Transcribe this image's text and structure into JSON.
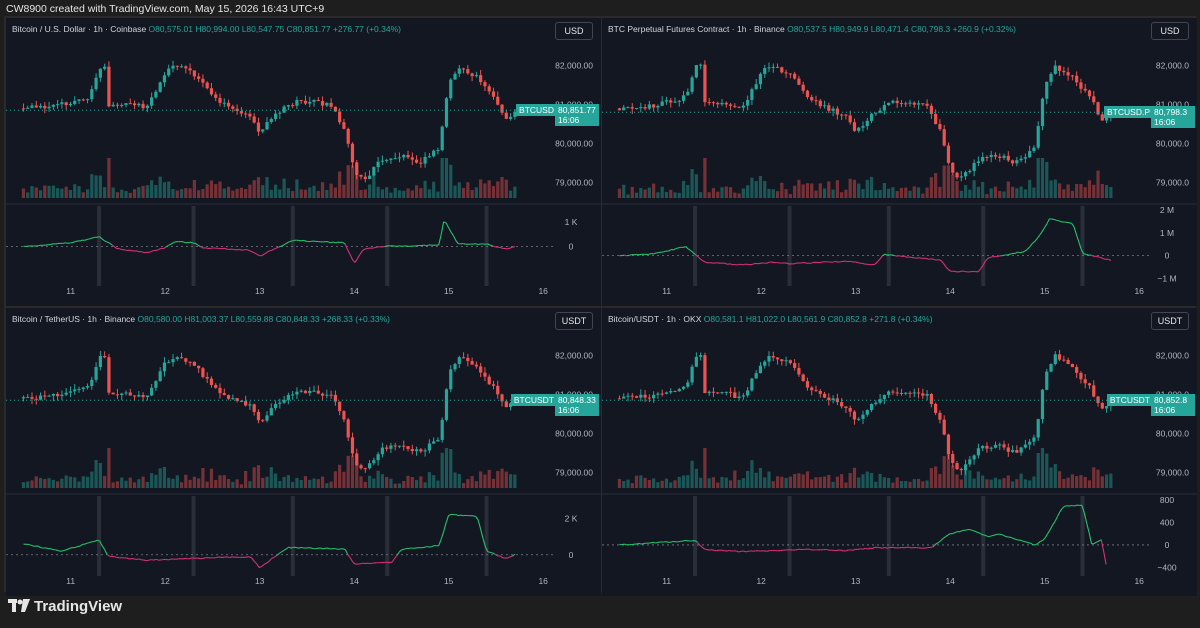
{
  "caption": "CW8900 created with TradingView.com, May 15, 2026 16:43 UTC+9",
  "brand": "TradingView",
  "colors": {
    "up": "#26a69a",
    "down": "#ef5350",
    "cvd_up": "#26c26a",
    "cvd_down": "#d6307a",
    "bg": "#131722",
    "grid": "#1f2430"
  },
  "panels": [
    {
      "name": "Bitcoin / U.S. Dollar · 1h · Coinbase",
      "ohlc": {
        "o": "O80,575.01",
        "h": "H80,994.00",
        "l": "L80,547.75",
        "c": "C80,851.77",
        "chg": "+276.77 (+0.34%)"
      },
      "currency": "USD",
      "ticker": "BTCUSD",
      "last_price": "80,851.77",
      "countdown": "16:06",
      "price_ticks": [
        "82,000.00",
        "81,000.00",
        "80,000.00",
        "79,000.00"
      ],
      "cvd_ticks": [
        "1 K",
        "0"
      ],
      "x_ticks": [
        "11",
        "12",
        "13",
        "14",
        "15",
        "16"
      ]
    },
    {
      "name": "BTC Perpetual Futures Contract · 1h · Binance",
      "ohlc": {
        "o": "O80,537.5",
        "h": "H80,949.9",
        "l": "L80,471.4",
        "c": "C80,798.3",
        "chg": "+260.9 (+0.32%)"
      },
      "currency": "USD",
      "ticker": "BTCUSD.P",
      "last_price": "80,798.3",
      "countdown": "16:06",
      "price_ticks": [
        "82,000.0",
        "81,000.0",
        "80,000.0",
        "79,000.0"
      ],
      "cvd_ticks": [
        "2 M",
        "1 M",
        "0",
        "−1 M"
      ],
      "x_ticks": [
        "11",
        "12",
        "13",
        "14",
        "15",
        "16"
      ]
    },
    {
      "name": "Bitcoin / TetherUS · 1h · Binance",
      "ohlc": {
        "o": "O80,580.00",
        "h": "H81,003.37",
        "l": "L80,559.88",
        "c": "C80,848.33",
        "chg": "+268.33 (+0.33%)"
      },
      "currency": "USDT",
      "ticker": "BTCUSDT",
      "last_price": "80,848.33",
      "countdown": "16:06",
      "price_ticks": [
        "82,000.00",
        "81,000.00",
        "80,000.00",
        "79,000.00"
      ],
      "cvd_ticks": [
        "2 K",
        "0"
      ],
      "x_ticks": [
        "11",
        "12",
        "13",
        "14",
        "15",
        "16"
      ]
    },
    {
      "name": "Bitcoin/USDT · 1h · OKX",
      "ohlc": {
        "o": "O80,581.1",
        "h": "H81,022.0",
        "l": "L80,561.9",
        "c": "C80,852.8",
        "chg": "+271.8 (+0.34%)"
      },
      "currency": "USDT",
      "ticker": "BTCUSDT",
      "last_price": "80,852.8",
      "countdown": "16:06",
      "price_ticks": [
        "82,000.0",
        "81,000.0",
        "80,000.0",
        "79,000.0"
      ],
      "cvd_ticks": [
        "800",
        "400",
        "0",
        "−400"
      ],
      "x_ticks": [
        "11",
        "12",
        "13",
        "14",
        "15",
        "16"
      ]
    }
  ],
  "chart_data": [
    {
      "type": "candlestick",
      "title": "Bitcoin / U.S. Dollar · 1h · Coinbase",
      "ylim": [
        78600,
        82500
      ],
      "cvd_ylim": [
        -1500,
        1500
      ],
      "x": [
        "11",
        "12",
        "13",
        "14",
        "15",
        "16"
      ],
      "close_path": [
        [
          10.5,
          80900
        ],
        [
          10.8,
          80950
        ],
        [
          11.0,
          81050
        ],
        [
          11.2,
          81200
        ],
        [
          11.35,
          82200
        ],
        [
          11.4,
          81000
        ],
        [
          11.6,
          81050
        ],
        [
          11.8,
          80900
        ],
        [
          12.0,
          81800
        ],
        [
          12.1,
          82000
        ],
        [
          12.3,
          81800
        ],
        [
          12.5,
          81200
        ],
        [
          12.7,
          80900
        ],
        [
          12.9,
          80700
        ],
        [
          13.0,
          80300
        ],
        [
          13.2,
          80800
        ],
        [
          13.4,
          81100
        ],
        [
          13.6,
          81050
        ],
        [
          13.75,
          81000
        ],
        [
          13.9,
          80300
        ],
        [
          14.0,
          79300
        ],
        [
          14.1,
          79050
        ],
        [
          14.3,
          79600
        ],
        [
          14.5,
          79700
        ],
        [
          14.7,
          79500
        ],
        [
          14.9,
          79900
        ],
        [
          15.0,
          81500
        ],
        [
          15.1,
          82000
        ],
        [
          15.3,
          81700
        ],
        [
          15.5,
          81100
        ],
        [
          15.6,
          80600
        ],
        [
          15.7,
          80850
        ]
      ],
      "cvd_path": [
        [
          10.5,
          0
        ],
        [
          11.0,
          150
        ],
        [
          11.3,
          400
        ],
        [
          11.5,
          -100
        ],
        [
          11.8,
          -250
        ],
        [
          12.0,
          -50
        ],
        [
          12.1,
          200
        ],
        [
          12.3,
          150
        ],
        [
          12.4,
          -50
        ],
        [
          12.9,
          -150
        ],
        [
          13.0,
          -400
        ],
        [
          13.1,
          -200
        ],
        [
          13.35,
          250
        ],
        [
          13.9,
          150
        ],
        [
          14.0,
          -700
        ],
        [
          14.1,
          -100
        ],
        [
          14.3,
          0
        ],
        [
          14.9,
          50
        ],
        [
          14.95,
          1100
        ],
        [
          15.1,
          100
        ],
        [
          15.4,
          100
        ],
        [
          15.6,
          -100
        ],
        [
          15.7,
          0
        ]
      ]
    },
    {
      "type": "candlestick",
      "title": "BTC Perpetual Futures Contract · 1h · Binance",
      "ylim": [
        78600,
        82500
      ],
      "cvd_ylim": [
        -1200000,
        2000000
      ],
      "x": [
        "11",
        "12",
        "13",
        "14",
        "15",
        "16"
      ],
      "close_path": [
        [
          10.5,
          80900
        ],
        [
          10.8,
          80950
        ],
        [
          11.0,
          81050
        ],
        [
          11.2,
          81200
        ],
        [
          11.35,
          82200
        ],
        [
          11.4,
          81000
        ],
        [
          11.6,
          81050
        ],
        [
          11.8,
          80900
        ],
        [
          12.0,
          81800
        ],
        [
          12.1,
          82000
        ],
        [
          12.3,
          81800
        ],
        [
          12.5,
          81200
        ],
        [
          12.7,
          80900
        ],
        [
          12.9,
          80700
        ],
        [
          13.0,
          80300
        ],
        [
          13.2,
          80800
        ],
        [
          13.4,
          81100
        ],
        [
          13.6,
          81050
        ],
        [
          13.75,
          81000
        ],
        [
          13.9,
          80300
        ],
        [
          14.0,
          79300
        ],
        [
          14.1,
          79050
        ],
        [
          14.3,
          79600
        ],
        [
          14.5,
          79700
        ],
        [
          14.7,
          79500
        ],
        [
          14.9,
          79900
        ],
        [
          15.0,
          81500
        ],
        [
          15.1,
          82000
        ],
        [
          15.3,
          81700
        ],
        [
          15.5,
          81100
        ],
        [
          15.6,
          80600
        ],
        [
          15.7,
          80800
        ]
      ],
      "cvd_path": [
        [
          10.5,
          0
        ],
        [
          10.9,
          100000
        ],
        [
          11.2,
          400000
        ],
        [
          11.4,
          -300000
        ],
        [
          11.8,
          -400000
        ],
        [
          12.1,
          -300000
        ],
        [
          12.3,
          -350000
        ],
        [
          12.9,
          -250000
        ],
        [
          13.2,
          -400000
        ],
        [
          13.3,
          50000
        ],
        [
          13.9,
          -200000
        ],
        [
          14.0,
          -700000
        ],
        [
          14.3,
          -700000
        ],
        [
          14.4,
          -100000
        ],
        [
          14.8,
          200000
        ],
        [
          14.95,
          900000
        ],
        [
          15.05,
          1600000
        ],
        [
          15.3,
          1400000
        ],
        [
          15.4,
          100000
        ],
        [
          15.7,
          -200000
        ]
      ]
    },
    {
      "type": "candlestick",
      "title": "Bitcoin / TetherUS · 1h · Binance",
      "ylim": [
        78600,
        82500
      ],
      "cvd_ylim": [
        -1000,
        3000
      ],
      "x": [
        "11",
        "12",
        "13",
        "14",
        "15",
        "16"
      ],
      "close_path": [
        [
          10.5,
          80900
        ],
        [
          10.8,
          80950
        ],
        [
          11.0,
          81050
        ],
        [
          11.2,
          81200
        ],
        [
          11.35,
          82200
        ],
        [
          11.4,
          81000
        ],
        [
          11.6,
          81050
        ],
        [
          11.8,
          80900
        ],
        [
          12.0,
          81800
        ],
        [
          12.1,
          82000
        ],
        [
          12.3,
          81800
        ],
        [
          12.5,
          81200
        ],
        [
          12.7,
          80900
        ],
        [
          12.9,
          80700
        ],
        [
          13.0,
          80300
        ],
        [
          13.2,
          80800
        ],
        [
          13.4,
          81100
        ],
        [
          13.6,
          81050
        ],
        [
          13.75,
          81000
        ],
        [
          13.9,
          80300
        ],
        [
          14.0,
          79300
        ],
        [
          14.1,
          79050
        ],
        [
          14.3,
          79600
        ],
        [
          14.5,
          79700
        ],
        [
          14.7,
          79500
        ],
        [
          14.9,
          79900
        ],
        [
          15.0,
          81500
        ],
        [
          15.1,
          82000
        ],
        [
          15.3,
          81700
        ],
        [
          15.5,
          81100
        ],
        [
          15.6,
          80600
        ],
        [
          15.7,
          80850
        ]
      ],
      "cvd_path": [
        [
          10.5,
          600
        ],
        [
          10.9,
          200
        ],
        [
          11.3,
          800
        ],
        [
          11.4,
          -100
        ],
        [
          11.8,
          -300
        ],
        [
          12.3,
          -200
        ],
        [
          12.9,
          -100
        ],
        [
          13.0,
          -700
        ],
        [
          13.3,
          400
        ],
        [
          13.9,
          300
        ],
        [
          14.0,
          -500
        ],
        [
          14.4,
          -400
        ],
        [
          14.5,
          300
        ],
        [
          14.9,
          500
        ],
        [
          15.0,
          2200
        ],
        [
          15.3,
          2100
        ],
        [
          15.4,
          200
        ],
        [
          15.6,
          -200
        ],
        [
          15.7,
          0
        ]
      ]
    },
    {
      "type": "candlestick",
      "title": "Bitcoin/USDT · 1h · OKX",
      "ylim": [
        78600,
        82500
      ],
      "cvd_ylim": [
        -500,
        800
      ],
      "x": [
        "11",
        "12",
        "13",
        "14",
        "15",
        "16"
      ],
      "close_path": [
        [
          10.5,
          80900
        ],
        [
          10.8,
          80950
        ],
        [
          11.0,
          81050
        ],
        [
          11.2,
          81200
        ],
        [
          11.35,
          82200
        ],
        [
          11.4,
          81000
        ],
        [
          11.6,
          81050
        ],
        [
          11.8,
          80900
        ],
        [
          12.0,
          81800
        ],
        [
          12.1,
          82000
        ],
        [
          12.3,
          81800
        ],
        [
          12.5,
          81200
        ],
        [
          12.7,
          80900
        ],
        [
          12.9,
          80700
        ],
        [
          13.0,
          80300
        ],
        [
          13.2,
          80800
        ],
        [
          13.4,
          81100
        ],
        [
          13.6,
          81050
        ],
        [
          13.75,
          81000
        ],
        [
          13.9,
          80300
        ],
        [
          14.0,
          79300
        ],
        [
          14.1,
          79050
        ],
        [
          14.3,
          79600
        ],
        [
          14.5,
          79700
        ],
        [
          14.7,
          79500
        ],
        [
          14.9,
          79900
        ],
        [
          15.0,
          81500
        ],
        [
          15.1,
          82000
        ],
        [
          15.3,
          81700
        ],
        [
          15.5,
          81100
        ],
        [
          15.6,
          80600
        ],
        [
          15.7,
          80850
        ]
      ],
      "cvd_path": [
        [
          10.5,
          0
        ],
        [
          11.3,
          80
        ],
        [
          11.4,
          -80
        ],
        [
          11.8,
          -120
        ],
        [
          12.5,
          -80
        ],
        [
          12.9,
          -100
        ],
        [
          13.2,
          -50
        ],
        [
          13.5,
          -50
        ],
        [
          13.8,
          -50
        ],
        [
          14.0,
          200
        ],
        [
          14.2,
          280
        ],
        [
          14.4,
          150
        ],
        [
          14.5,
          200
        ],
        [
          14.9,
          0
        ],
        [
          15.0,
          100
        ],
        [
          15.2,
          700
        ],
        [
          15.4,
          700
        ],
        [
          15.5,
          0
        ],
        [
          15.6,
          100
        ],
        [
          15.65,
          -350
        ]
      ]
    }
  ]
}
